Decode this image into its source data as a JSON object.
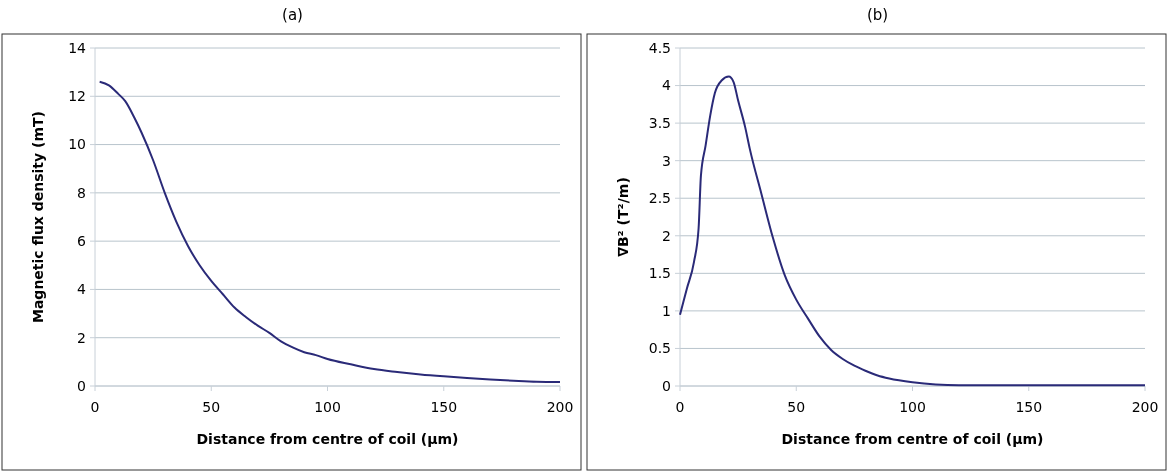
{
  "chart_data": [
    {
      "type": "line",
      "title": "(a)",
      "xlabel": "Distance from centre of coil (µm)",
      "ylabel": "Magnetic flux density (mT)",
      "x": [
        2,
        6,
        10,
        13,
        17,
        20,
        25,
        30,
        35,
        40,
        45,
        50,
        55,
        60,
        65,
        70,
        75,
        80,
        85,
        90,
        95,
        100,
        110,
        120,
        130,
        140,
        150,
        160,
        170,
        180,
        190,
        200
      ],
      "series": [
        {
          "color": "#2a2a78",
          "values": [
            12.6,
            12.45,
            12.1,
            11.8,
            11.1,
            10.5,
            9.35,
            8.0,
            6.8,
            5.8,
            5.0,
            4.35,
            3.8,
            3.25,
            2.85,
            2.5,
            2.2,
            1.85,
            1.6,
            1.4,
            1.28,
            1.12,
            0.9,
            0.7,
            0.58,
            0.48,
            0.4,
            0.33,
            0.27,
            0.22,
            0.18,
            0.17
          ]
        }
      ],
      "xlim": [
        0,
        200
      ],
      "xticks": [
        0,
        50,
        100,
        150,
        200
      ],
      "ylim": [
        0,
        14
      ],
      "yticks": [
        0,
        2,
        4,
        6,
        8,
        10,
        12,
        14
      ],
      "grid": "y",
      "marker": "none",
      "line_style": "solid"
    },
    {
      "type": "line",
      "title": "(b)",
      "xlabel": "Distance from centre of coil (µm)",
      "ylabel": "∇B² (T²/m)",
      "x": [
        0,
        3,
        6,
        8,
        9,
        11,
        13,
        15,
        18,
        21,
        23,
        25,
        28,
        30,
        35,
        40,
        45,
        50,
        55,
        60,
        65,
        70,
        75,
        80,
        85,
        90,
        100,
        110,
        120,
        150,
        200
      ],
      "series": [
        {
          "color": "#2a2a78",
          "values": [
            0.95,
            1.3,
            1.65,
            2.1,
            2.8,
            3.2,
            3.6,
            3.9,
            4.07,
            4.12,
            4.05,
            3.8,
            3.45,
            3.16,
            2.56,
            1.97,
            1.48,
            1.15,
            0.9,
            0.66,
            0.48,
            0.36,
            0.27,
            0.2,
            0.14,
            0.1,
            0.05,
            0.02,
            0.01,
            0.01,
            0.01
          ]
        }
      ],
      "xlim": [
        0,
        200
      ],
      "xticks": [
        0,
        50,
        100,
        150,
        200
      ],
      "ylim": [
        0,
        4.5
      ],
      "yticks": [
        0,
        0.5,
        1,
        1.5,
        2,
        2.5,
        3,
        3.5,
        4,
        4.5
      ],
      "grid": "y",
      "marker": "none",
      "line_style": "solid"
    }
  ]
}
